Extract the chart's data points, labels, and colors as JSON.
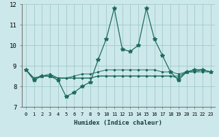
{
  "xlabel": "Humidex (Indice chaleur)",
  "ylabel": "",
  "xlim": [
    -0.5,
    23.5
  ],
  "ylim": [
    7,
    12
  ],
  "yticks": [
    7,
    8,
    9,
    10,
    11,
    12
  ],
  "xticks": [
    0,
    1,
    2,
    3,
    4,
    5,
    6,
    7,
    8,
    9,
    10,
    11,
    12,
    13,
    14,
    15,
    16,
    17,
    18,
    19,
    20,
    21,
    22,
    23
  ],
  "background_color": "#cde8ea",
  "grid_color": "#a0c8cc",
  "line_color": "#1a6b5a",
  "lines": [
    {
      "x": [
        0,
        1,
        2,
        3,
        4,
        5,
        6,
        7,
        8,
        9,
        10,
        11,
        12,
        13,
        14,
        15,
        16,
        17,
        18,
        19,
        20,
        21,
        22,
        23
      ],
      "y": [
        8.8,
        8.3,
        8.5,
        8.5,
        8.3,
        7.5,
        7.7,
        8.0,
        8.2,
        9.3,
        10.3,
        11.8,
        9.8,
        9.7,
        10.0,
        11.8,
        10.3,
        9.5,
        8.7,
        8.3,
        8.7,
        8.8,
        8.8,
        8.7
      ]
    },
    {
      "x": [
        0,
        1,
        2,
        3,
        4,
        5,
        6,
        7,
        8,
        9,
        10,
        11,
        12,
        13,
        14,
        15,
        16,
        17,
        18,
        19,
        20,
        21,
        22,
        23
      ],
      "y": [
        8.8,
        8.4,
        8.5,
        8.5,
        8.4,
        8.4,
        8.4,
        8.4,
        8.4,
        8.5,
        8.5,
        8.5,
        8.5,
        8.5,
        8.5,
        8.5,
        8.5,
        8.5,
        8.5,
        8.5,
        8.7,
        8.7,
        8.7,
        8.7
      ]
    },
    {
      "x": [
        0,
        1,
        2,
        3,
        4,
        5,
        6,
        7,
        8,
        9,
        10,
        11,
        12,
        13,
        14,
        15,
        16,
        17,
        18,
        19,
        20,
        21,
        22,
        23
      ],
      "y": [
        8.8,
        8.4,
        8.5,
        8.5,
        8.4,
        8.4,
        8.4,
        8.4,
        8.4,
        8.5,
        8.5,
        8.5,
        8.5,
        8.5,
        8.5,
        8.5,
        8.5,
        8.5,
        8.5,
        8.4,
        8.7,
        8.7,
        8.8,
        8.7
      ]
    },
    {
      "x": [
        0,
        1,
        2,
        3,
        4,
        5,
        6,
        7,
        8,
        9,
        10,
        11,
        12,
        13,
        14,
        15,
        16,
        17,
        18,
        19,
        20,
        21,
        22,
        23
      ],
      "y": [
        8.8,
        8.4,
        8.5,
        8.6,
        8.4,
        8.4,
        8.5,
        8.6,
        8.6,
        8.7,
        8.8,
        8.8,
        8.8,
        8.8,
        8.8,
        8.8,
        8.8,
        8.7,
        8.7,
        8.6,
        8.7,
        8.8,
        8.8,
        8.7
      ]
    }
  ]
}
